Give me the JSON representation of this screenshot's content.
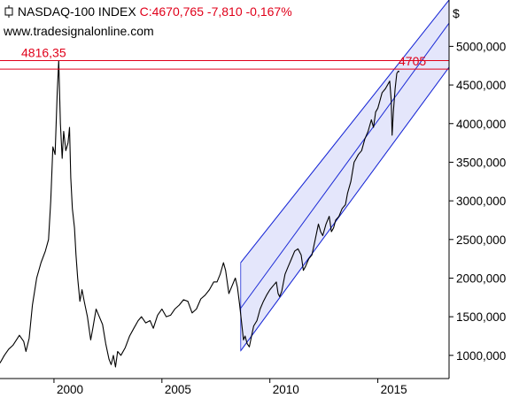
{
  "header": {
    "symbol_icon": "candlestick-icon",
    "name": "NASDAQ-100 INDEX",
    "close": "C:4670,765",
    "change": "-7,810",
    "change_pct": "-0,167%",
    "website": "www.tradesignalonline.com"
  },
  "colors": {
    "price_line": "#000000",
    "resistance_line": "#e0001a",
    "channel_line": "#1c2bd6",
    "channel_fill": "#e4e6fb",
    "axis": "#000000",
    "annotation": "#e0001a"
  },
  "chart_data": {
    "type": "line",
    "title": "",
    "xlabel": "",
    "ylabel": "$",
    "currency_label": "$",
    "y_scale": "linear",
    "ylim": [
      700,
      5600
    ],
    "xlim": [
      1997.5,
      2018.3
    ],
    "grid": false,
    "legend": "none",
    "x_ticks": [
      2000,
      2005,
      2010,
      2015
    ],
    "x_tick_labels": [
      "2000",
      "2005",
      "2010",
      "2015"
    ],
    "y_ticks": [
      1000,
      1500,
      2000,
      2500,
      3000,
      3500,
      4000,
      4500,
      5000
    ],
    "y_tick_labels": [
      "1000,000",
      "1500,000",
      "2000,000",
      "2500,000",
      "3000,000",
      "3500,000",
      "4000,000",
      "4500,000",
      "5000,000"
    ],
    "horizontal_lines": [
      {
        "label": "4816,35",
        "value": 4816.35,
        "label_position": "left"
      },
      {
        "label": "4705",
        "value": 4705,
        "label_position": "right"
      }
    ],
    "trend_channel": {
      "x_start": 2008.65,
      "x_end": 2018.3,
      "upper": [
        2200,
        5600
      ],
      "middle": [
        1610,
        5300
      ],
      "lower": [
        1060,
        4730
      ]
    },
    "series": [
      {
        "values_xy": [
          [
            1997.5,
            900
          ],
          [
            1997.7,
            1000
          ],
          [
            1997.9,
            1080
          ],
          [
            1998.1,
            1130
          ],
          [
            1998.4,
            1260
          ],
          [
            1998.6,
            1180
          ],
          [
            1998.7,
            1050
          ],
          [
            1998.85,
            1220
          ],
          [
            1999.0,
            1650
          ],
          [
            1999.2,
            2000
          ],
          [
            1999.4,
            2200
          ],
          [
            1999.6,
            2350
          ],
          [
            1999.75,
            2500
          ],
          [
            1999.85,
            3000
          ],
          [
            1999.95,
            3700
          ],
          [
            2000.05,
            3600
          ],
          [
            2000.15,
            4400
          ],
          [
            2000.22,
            4816
          ],
          [
            2000.3,
            4000
          ],
          [
            2000.38,
            3550
          ],
          [
            2000.45,
            3900
          ],
          [
            2000.55,
            3650
          ],
          [
            2000.65,
            3750
          ],
          [
            2000.72,
            3950
          ],
          [
            2000.78,
            3300
          ],
          [
            2000.85,
            2900
          ],
          [
            2000.95,
            2650
          ],
          [
            2001.02,
            2300
          ],
          [
            2001.1,
            2000
          ],
          [
            2001.2,
            1700
          ],
          [
            2001.3,
            1850
          ],
          [
            2001.4,
            1700
          ],
          [
            2001.55,
            1500
          ],
          [
            2001.7,
            1200
          ],
          [
            2001.8,
            1350
          ],
          [
            2001.95,
            1600
          ],
          [
            2002.1,
            1500
          ],
          [
            2002.25,
            1400
          ],
          [
            2002.4,
            1150
          ],
          [
            2002.55,
            950
          ],
          [
            2002.65,
            880
          ],
          [
            2002.75,
            1000
          ],
          [
            2002.85,
            850
          ],
          [
            2002.95,
            1050
          ],
          [
            2003.1,
            1000
          ],
          [
            2003.3,
            1100
          ],
          [
            2003.5,
            1250
          ],
          [
            2003.7,
            1350
          ],
          [
            2003.9,
            1450
          ],
          [
            2004.05,
            1500
          ],
          [
            2004.25,
            1420
          ],
          [
            2004.45,
            1450
          ],
          [
            2004.6,
            1350
          ],
          [
            2004.8,
            1520
          ],
          [
            2005.0,
            1600
          ],
          [
            2005.2,
            1500
          ],
          [
            2005.4,
            1520
          ],
          [
            2005.6,
            1600
          ],
          [
            2005.8,
            1650
          ],
          [
            2006.0,
            1720
          ],
          [
            2006.2,
            1700
          ],
          [
            2006.4,
            1550
          ],
          [
            2006.6,
            1600
          ],
          [
            2006.8,
            1730
          ],
          [
            2007.0,
            1780
          ],
          [
            2007.2,
            1850
          ],
          [
            2007.4,
            1950
          ],
          [
            2007.55,
            1950
          ],
          [
            2007.7,
            2050
          ],
          [
            2007.85,
            2200
          ],
          [
            2007.95,
            2100
          ],
          [
            2008.1,
            1800
          ],
          [
            2008.25,
            1900
          ],
          [
            2008.4,
            2000
          ],
          [
            2008.5,
            1880
          ],
          [
            2008.6,
            1650
          ],
          [
            2008.7,
            1400
          ],
          [
            2008.78,
            1200
          ],
          [
            2008.85,
            1250
          ],
          [
            2008.95,
            1150
          ],
          [
            2009.05,
            1110
          ],
          [
            2009.15,
            1250
          ],
          [
            2009.25,
            1380
          ],
          [
            2009.4,
            1450
          ],
          [
            2009.55,
            1600
          ],
          [
            2009.7,
            1700
          ],
          [
            2009.85,
            1780
          ],
          [
            2010.0,
            1850
          ],
          [
            2010.15,
            1900
          ],
          [
            2010.3,
            1950
          ],
          [
            2010.38,
            1800
          ],
          [
            2010.45,
            1760
          ],
          [
            2010.55,
            1830
          ],
          [
            2010.7,
            2050
          ],
          [
            2010.85,
            2150
          ],
          [
            2011.0,
            2250
          ],
          [
            2011.15,
            2350
          ],
          [
            2011.3,
            2380
          ],
          [
            2011.45,
            2300
          ],
          [
            2011.55,
            2100
          ],
          [
            2011.65,
            2150
          ],
          [
            2011.8,
            2250
          ],
          [
            2011.95,
            2300
          ],
          [
            2012.1,
            2500
          ],
          [
            2012.25,
            2700
          ],
          [
            2012.35,
            2600
          ],
          [
            2012.45,
            2550
          ],
          [
            2012.6,
            2700
          ],
          [
            2012.75,
            2800
          ],
          [
            2012.85,
            2600
          ],
          [
            2012.95,
            2650
          ],
          [
            2013.05,
            2750
          ],
          [
            2013.2,
            2800
          ],
          [
            2013.35,
            2900
          ],
          [
            2013.5,
            2950
          ],
          [
            2013.6,
            3100
          ],
          [
            2013.75,
            3250
          ],
          [
            2013.9,
            3500
          ],
          [
            2014.0,
            3550
          ],
          [
            2014.1,
            3600
          ],
          [
            2014.25,
            3650
          ],
          [
            2014.4,
            3800
          ],
          [
            2014.55,
            3900
          ],
          [
            2014.7,
            4050
          ],
          [
            2014.8,
            3950
          ],
          [
            2014.9,
            4150
          ],
          [
            2015.0,
            4200
          ],
          [
            2015.1,
            4300
          ],
          [
            2015.2,
            4400
          ],
          [
            2015.35,
            4450
          ],
          [
            2015.45,
            4500
          ],
          [
            2015.55,
            4550
          ],
          [
            2015.62,
            4300
          ],
          [
            2015.66,
            3850
          ],
          [
            2015.72,
            4150
          ],
          [
            2015.8,
            4450
          ],
          [
            2015.88,
            4650
          ],
          [
            2015.95,
            4680
          ],
          [
            2016.0,
            4670
          ]
        ]
      }
    ]
  }
}
